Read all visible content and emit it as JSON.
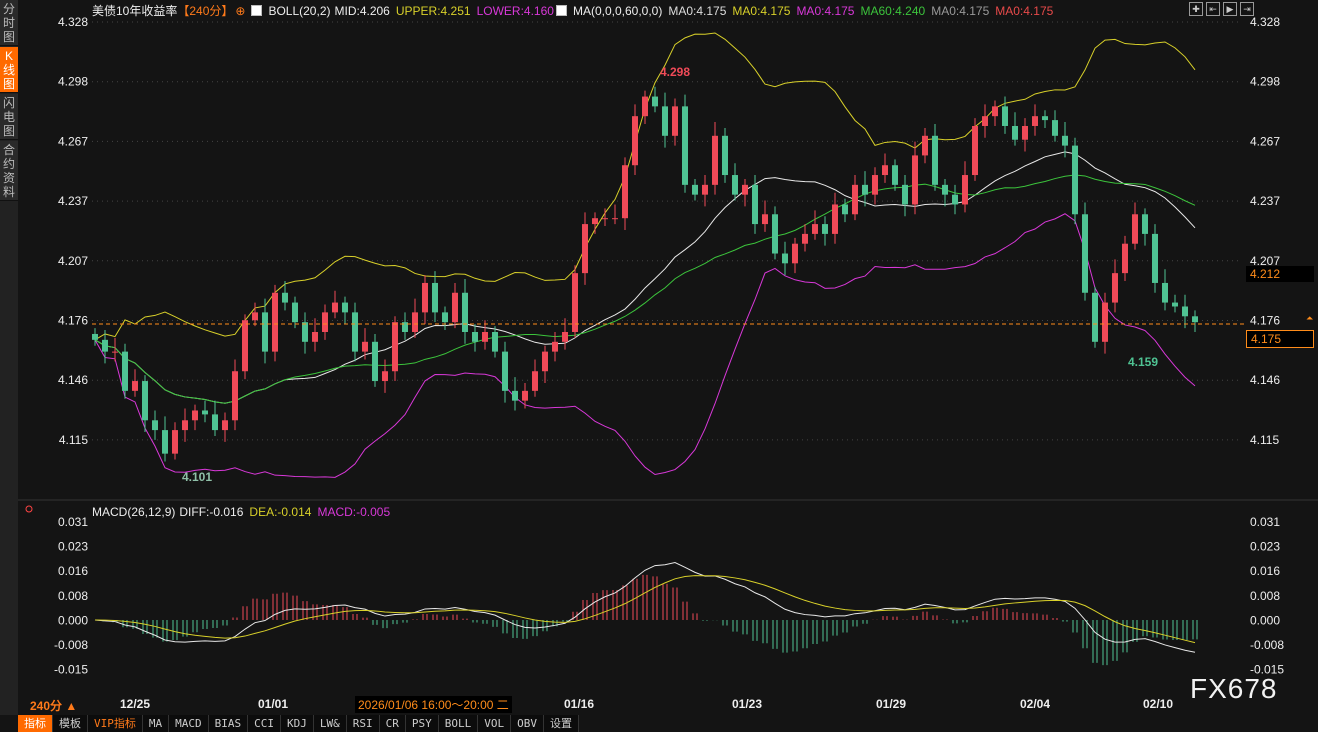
{
  "sidebar": {
    "tabs": [
      {
        "label": "分时图"
      },
      {
        "label": "K线图",
        "active": true
      },
      {
        "label": "闪电图"
      },
      {
        "label": "合约资料"
      }
    ]
  },
  "header": {
    "title": "美债10年收益率",
    "period": "【240分】",
    "boll": "BOLL(20,2)",
    "mid": "MID:4.206",
    "upper": "UPPER:4.251",
    "lower": "LOWER:4.160",
    "ma": "MA(0,0,0,60,0,0)",
    "ma_vals": [
      {
        "t": "MA0:4.175",
        "c": "#dddddd"
      },
      {
        "t": "MA0:4.175",
        "c": "#d8d02a"
      },
      {
        "t": "MA0:4.175",
        "c": "#d838d8"
      },
      {
        "t": "MA60:4.240",
        "c": "#3cc43c"
      },
      {
        "t": "MA0:4.175",
        "c": "#999999"
      },
      {
        "t": "MA0:4.175",
        "c": "#e84a4a"
      }
    ]
  },
  "macd_header": {
    "name": "MACD(26,12,9)",
    "diff": "DIFF:-0.016",
    "dea": "DEA:-0.014",
    "macd": "MACD:-0.005"
  },
  "tools": [
    "crosshair",
    "zoom-in",
    "zoom-out",
    "goto-latest"
  ],
  "price_box": {
    "last": "4.175",
    "mid": "4.212"
  },
  "period_select": "240分 ▲",
  "cursor_time": "2026/01/06 16:00～20:00 二",
  "toolbar": [
    {
      "label": "指标",
      "on": true
    },
    {
      "label": "模板"
    },
    {
      "label": "VIP指标",
      "vip": true
    },
    {
      "label": "MA"
    },
    {
      "label": "MACD"
    },
    {
      "label": "BIAS"
    },
    {
      "label": "CCI"
    },
    {
      "label": "KDJ"
    },
    {
      "label": "LW&"
    },
    {
      "label": "RSI"
    },
    {
      "label": "CR"
    },
    {
      "label": "PSY"
    },
    {
      "label": "BOLL"
    },
    {
      "label": "VOL"
    },
    {
      "label": "OBV"
    },
    {
      "label": "设置"
    }
  ],
  "watermark": "FX678",
  "colors": {
    "up": "#f04a58",
    "down": "#4fc393",
    "upper": "#d8d02a",
    "mid": "#e8e8e8",
    "lower": "#d838d8",
    "ma60": "#3cc43c",
    "last": "#ff8c1a"
  },
  "chart_data": [
    {
      "type": "candlestick",
      "title": "美债10年收益率",
      "yticks": [
        "4.328",
        "4.298",
        "4.267",
        "4.237",
        "4.207",
        "4.176",
        "4.146",
        "4.115"
      ],
      "ylim": [
        4.09,
        4.335
      ],
      "xticks": [
        "12/25",
        "01/01",
        "01/16",
        "01/23",
        "01/29",
        "02/04",
        "02/10"
      ],
      "annotations": [
        {
          "text": "4.298",
          "type": "high"
        },
        {
          "text": "4.101",
          "type": "low"
        },
        {
          "text": "4.159",
          "type": "low"
        }
      ],
      "close": [
        4.166,
        4.16,
        4.16,
        4.14,
        4.145,
        4.125,
        4.12,
        4.108,
        4.12,
        4.125,
        4.13,
        4.128,
        4.12,
        4.125,
        4.15,
        4.176,
        4.18,
        4.16,
        4.19,
        4.185,
        4.175,
        4.165,
        4.17,
        4.18,
        4.185,
        4.18,
        4.16,
        4.165,
        4.145,
        4.15,
        4.175,
        4.17,
        4.18,
        4.195,
        4.18,
        4.175,
        4.19,
        4.17,
        4.165,
        4.17,
        4.16,
        4.14,
        4.135,
        4.14,
        4.15,
        4.16,
        4.165,
        4.17,
        4.2,
        4.225,
        4.228,
        4.228,
        4.228,
        4.255,
        4.28,
        4.29,
        4.285,
        4.27,
        4.285,
        4.245,
        4.24,
        4.245,
        4.27,
        4.25,
        4.24,
        4.245,
        4.225,
        4.23,
        4.21,
        4.205,
        4.215,
        4.22,
        4.225,
        4.22,
        4.235,
        4.23,
        4.245,
        4.24,
        4.25,
        4.255,
        4.245,
        4.235,
        4.26,
        4.27,
        4.245,
        4.24,
        4.235,
        4.25,
        4.275,
        4.28,
        4.285,
        4.275,
        4.268,
        4.275,
        4.28,
        4.278,
        4.27,
        4.265,
        4.23,
        4.19,
        4.165,
        4.185,
        4.2,
        4.215,
        4.23,
        4.22,
        4.195,
        4.185,
        4.183,
        4.178,
        4.175
      ]
    },
    {
      "type": "macd",
      "title": "MACD(26,12,9)",
      "yticks": [
        "0.031",
        "0.023",
        "0.016",
        "0.008",
        "0.000",
        "-0.008",
        "-0.015"
      ],
      "series": [
        {
          "name": "DIFF"
        },
        {
          "name": "DEA"
        },
        {
          "name": "MACD"
        }
      ]
    }
  ]
}
